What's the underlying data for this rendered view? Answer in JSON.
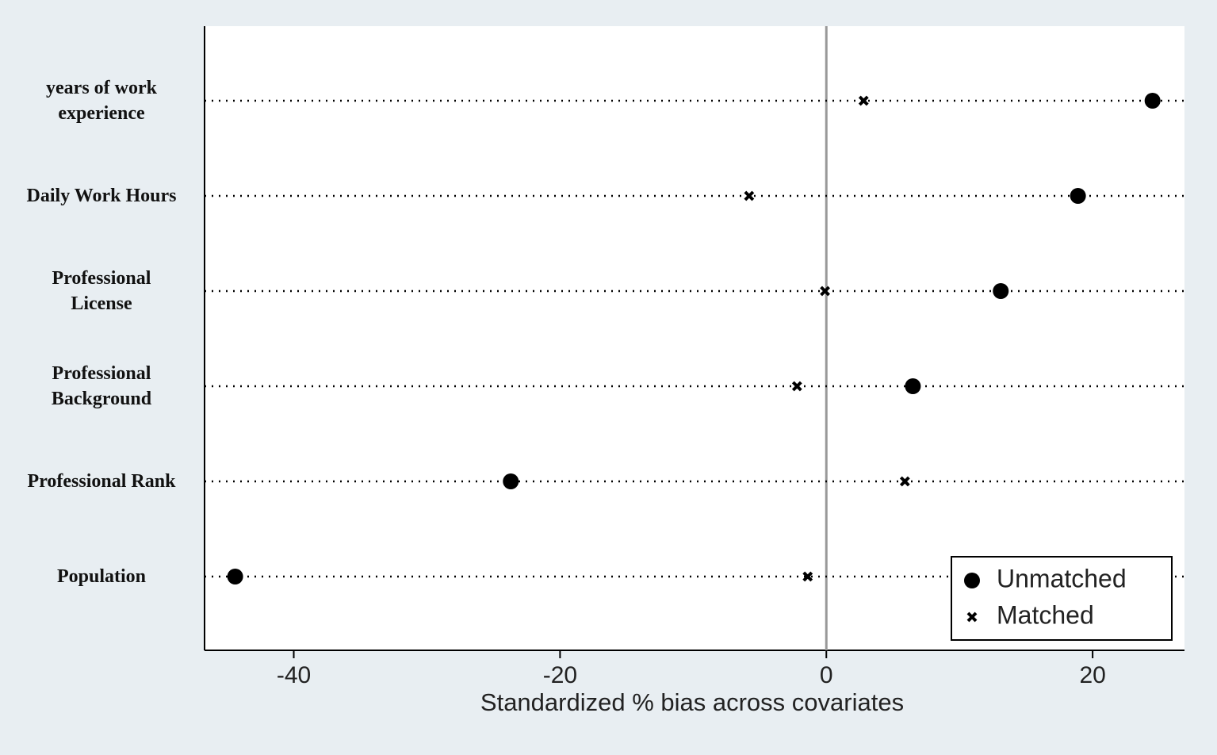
{
  "chart_data": {
    "type": "dot",
    "categories": [
      "years of work\nexperience",
      "Daily Work Hours",
      "Professional\nLicense",
      "Professional\nBackground",
      "Professional Rank",
      "Population"
    ],
    "series": [
      {
        "name": "Unmatched",
        "color": "#000000",
        "marker": "circle",
        "values": [
          24.5,
          18.9,
          13.1,
          6.5,
          -23.7,
          -44.4
        ]
      },
      {
        "name": "Matched",
        "color": "#000000",
        "marker": "x",
        "values": [
          2.8,
          -5.8,
          -0.1,
          -2.2,
          5.9,
          -1.4
        ]
      }
    ],
    "xlabel": "Standardized % bias across covariates",
    "xlim": [
      -46.7,
      26.9
    ],
    "xticks": [
      -40,
      -20,
      0,
      20
    ],
    "xline": 0,
    "legend": "lower right"
  }
}
